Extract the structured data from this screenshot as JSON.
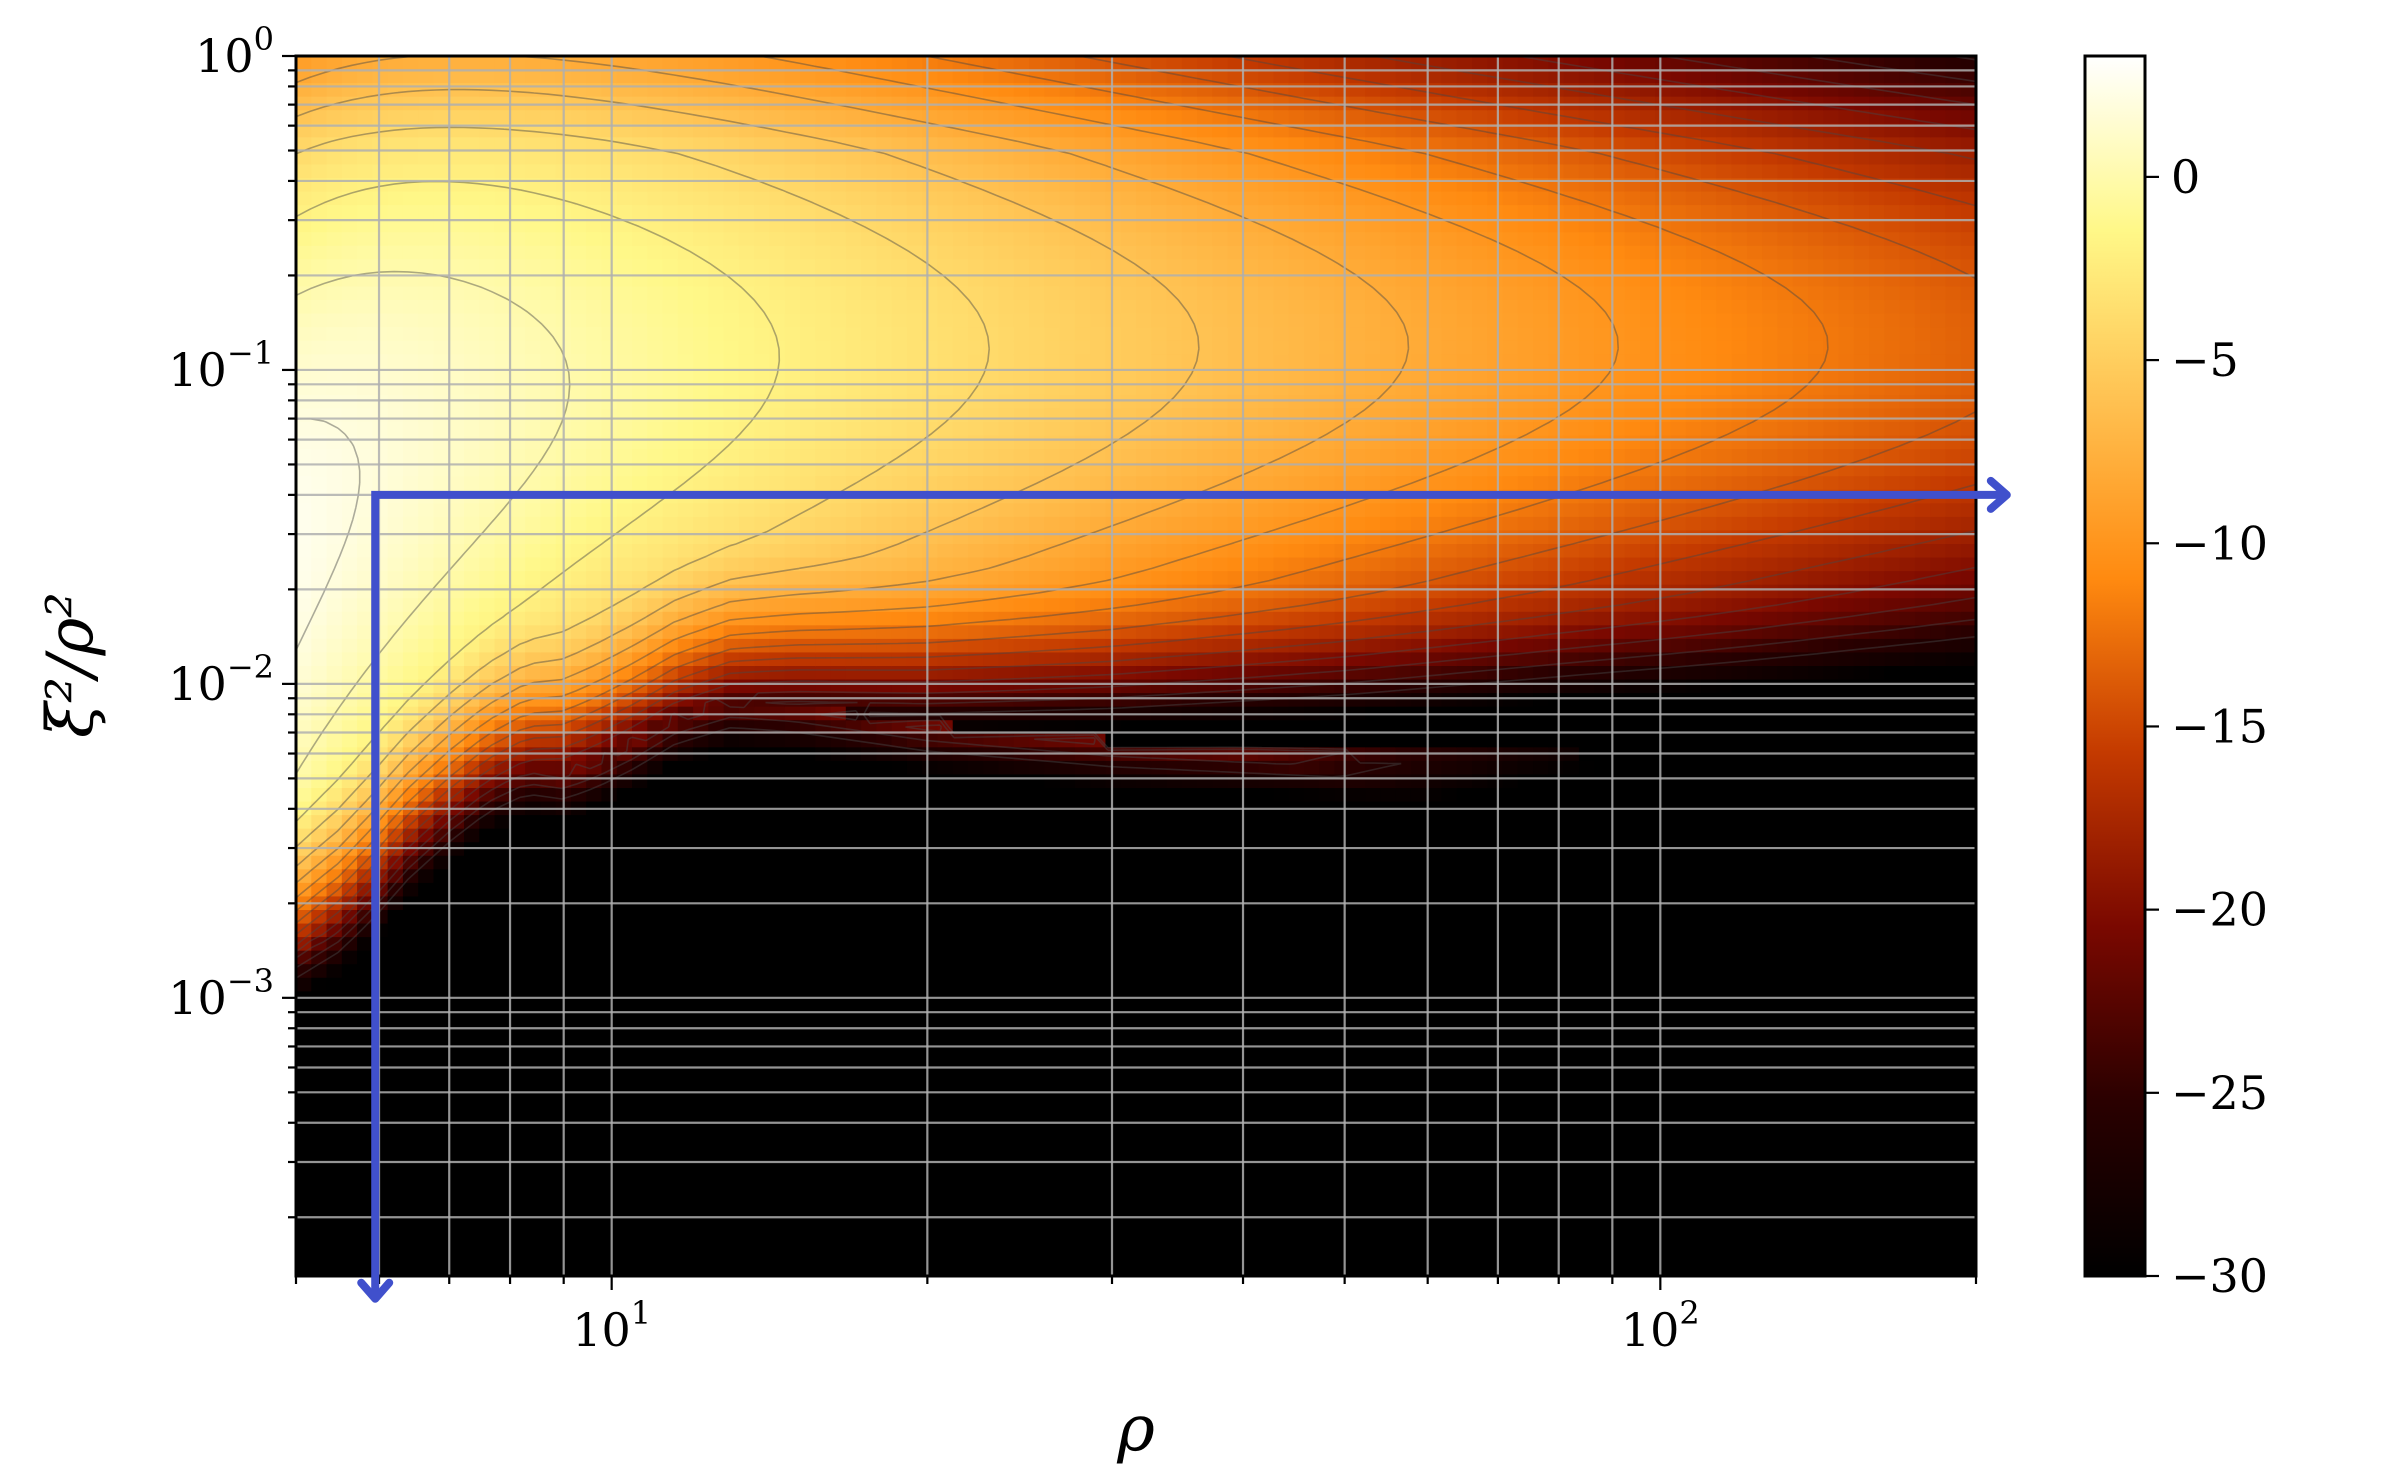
{
  "chart_data": {
    "type": "heatmap",
    "title": "",
    "xlabel": "ρ",
    "ylabel": "ξ²/ρ²",
    "x_scale": "log",
    "y_scale": "log",
    "xlim": [
      5,
      200
    ],
    "ylim": [
      0.00013,
      1
    ],
    "grid": true,
    "contours": true,
    "x_ticks": [
      {
        "value": 10,
        "base": "10",
        "exp": "1"
      },
      {
        "value": 100,
        "base": "10",
        "exp": "2"
      }
    ],
    "y_ticks": [
      {
        "value": 1,
        "base": "10",
        "exp": "0"
      },
      {
        "value": 0.1,
        "base": "10",
        "exp": "−1"
      },
      {
        "value": 0.01,
        "base": "10",
        "exp": "−2"
      },
      {
        "value": 0.001,
        "base": "10",
        "exp": "−3"
      }
    ],
    "colorbar": {
      "min": -30,
      "max": 3.3,
      "ticks": [
        {
          "value": 0,
          "label": "0"
        },
        {
          "value": -5,
          "label": "−5"
        },
        {
          "value": -10,
          "label": "−10"
        },
        {
          "value": -15,
          "label": "−15"
        },
        {
          "value": -20,
          "label": "−20"
        },
        {
          "value": -25,
          "label": "−25"
        },
        {
          "value": -30,
          "label": "−30"
        }
      ],
      "colors": [
        "#000000",
        "#2a0000",
        "#7a0800",
        "#c43a00",
        "#ff8a10",
        "#ffc050",
        "#fff888",
        "#ffffff"
      ]
    },
    "overlay_path": {
      "color": "#4050cc",
      "points": [
        [
          5.95,
          0.00011
        ],
        [
          5.95,
          0.04
        ],
        [
          214,
          0.04
        ]
      ]
    },
    "boundary": {
      "x": [
        5,
        5.5,
        5.95,
        6.4,
        7,
        7.6,
        8.3,
        9,
        9.7,
        10.5,
        11.5,
        13,
        15,
        20,
        30,
        50,
        80,
        120,
        200
      ],
      "y": [
        0.0014,
        0.0017,
        0.0022,
        0.0029,
        0.0038,
        0.0047,
        0.0054,
        0.0052,
        0.0057,
        0.0065,
        0.0078,
        0.0088,
        0.0085,
        0.0074,
        0.0066,
        0.0061,
        0.006,
        0.0058,
        0.0058
      ]
    }
  }
}
